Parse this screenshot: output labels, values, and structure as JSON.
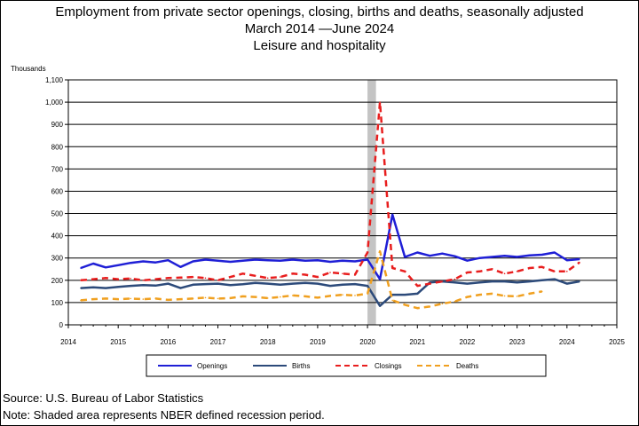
{
  "chart_data": {
    "type": "line",
    "title": "Employment from private sector openings, closing, births and deaths, seasonally adjusted",
    "subtitle": "March 2014 —June 2024",
    "subtitle2": "Leisure and hospitality",
    "ylabel": "Thousands",
    "xlabel": "",
    "ylim": [
      0,
      1100
    ],
    "yticks": [
      0,
      100,
      200,
      300,
      400,
      500,
      600,
      700,
      800,
      900,
      1000,
      1100
    ],
    "ytick_labels": [
      "0",
      "100",
      "200",
      "300",
      "400",
      "500",
      "600",
      "700",
      "800",
      "900",
      "1,000",
      "1,100"
    ],
    "xlim": [
      2014,
      2025
    ],
    "xticks": [
      2014,
      2015,
      2016,
      2017,
      2018,
      2019,
      2020,
      2021,
      2022,
      2023,
      2024,
      2025
    ],
    "xtick_labels": [
      "2014",
      "2015",
      "2016",
      "2017",
      "2018",
      "2019",
      "2020",
      "2021",
      "2022",
      "2023",
      "2024",
      "2025"
    ],
    "grid": "horizontal",
    "legend_position": "bottom",
    "recession_band": {
      "start": 2020.0,
      "end": 2020.17
    },
    "series": [
      {
        "name": "Openings",
        "color": "#1f1fd6",
        "dash": "solid",
        "x": [
          2014.25,
          2014.5,
          2014.75,
          2015.0,
          2015.25,
          2015.5,
          2015.75,
          2016.0,
          2016.25,
          2016.5,
          2016.75,
          2017.0,
          2017.25,
          2017.5,
          2017.75,
          2018.0,
          2018.25,
          2018.5,
          2018.75,
          2019.0,
          2019.25,
          2019.5,
          2019.75,
          2020.0,
          2020.25,
          2020.5,
          2020.75,
          2021.0,
          2021.25,
          2021.5,
          2021.75,
          2022.0,
          2022.25,
          2022.5,
          2022.75,
          2023.0,
          2023.25,
          2023.5,
          2023.75,
          2024.0,
          2024.25
        ],
        "values": [
          255,
          275,
          258,
          268,
          278,
          285,
          280,
          290,
          260,
          285,
          293,
          288,
          283,
          288,
          293,
          290,
          288,
          293,
          288,
          290,
          283,
          288,
          285,
          293,
          205,
          495,
          305,
          325,
          310,
          320,
          308,
          288,
          300,
          305,
          310,
          305,
          312,
          315,
          325,
          290,
          295
        ]
      },
      {
        "name": "Births",
        "color": "#2c4a7a",
        "dash": "solid",
        "x": [
          2014.25,
          2014.5,
          2014.75,
          2015.0,
          2015.25,
          2015.5,
          2015.75,
          2016.0,
          2016.25,
          2016.5,
          2016.75,
          2017.0,
          2017.25,
          2017.5,
          2017.75,
          2018.0,
          2018.25,
          2018.5,
          2018.75,
          2019.0,
          2019.25,
          2019.5,
          2019.75,
          2020.0,
          2020.25,
          2020.5,
          2020.75,
          2021.0,
          2021.25,
          2021.5,
          2021.75,
          2022.0,
          2022.25,
          2022.5,
          2022.75,
          2023.0,
          2023.25,
          2023.5,
          2023.75,
          2024.0,
          2024.25
        ],
        "values": [
          165,
          168,
          165,
          170,
          175,
          178,
          176,
          185,
          165,
          180,
          183,
          185,
          178,
          182,
          188,
          185,
          180,
          185,
          188,
          185,
          175,
          180,
          183,
          175,
          85,
          135,
          135,
          140,
          190,
          195,
          190,
          185,
          190,
          195,
          195,
          190,
          195,
          200,
          205,
          185,
          195
        ]
      },
      {
        "name": "Closings",
        "color": "#e81e1e",
        "dash": "dashed",
        "x": [
          2014.25,
          2014.5,
          2014.75,
          2015.0,
          2015.25,
          2015.5,
          2015.75,
          2016.0,
          2016.25,
          2016.5,
          2016.75,
          2017.0,
          2017.25,
          2017.5,
          2017.75,
          2018.0,
          2018.25,
          2018.5,
          2018.75,
          2019.0,
          2019.25,
          2019.5,
          2019.75,
          2020.0,
          2020.25,
          2020.5,
          2020.75,
          2021.0,
          2021.25,
          2021.5,
          2021.75,
          2022.0,
          2022.25,
          2022.5,
          2022.75,
          2023.0,
          2023.25,
          2023.5,
          2023.75,
          2024.0,
          2024.25
        ],
        "values": [
          200,
          205,
          210,
          205,
          208,
          200,
          205,
          210,
          212,
          215,
          210,
          200,
          215,
          230,
          220,
          210,
          215,
          230,
          225,
          215,
          235,
          230,
          225,
          325,
          1000,
          255,
          240,
          175,
          185,
          195,
          205,
          235,
          240,
          250,
          230,
          240,
          255,
          260,
          240,
          240,
          280
        ]
      },
      {
        "name": "Deaths",
        "color": "#f0a020",
        "dash": "dashed",
        "x": [
          2014.25,
          2014.5,
          2014.75,
          2015.0,
          2015.25,
          2015.5,
          2015.75,
          2016.0,
          2016.25,
          2016.5,
          2016.75,
          2017.0,
          2017.25,
          2017.5,
          2017.75,
          2018.0,
          2018.25,
          2018.5,
          2018.75,
          2019.0,
          2019.25,
          2019.5,
          2019.75,
          2020.0,
          2020.25,
          2020.5,
          2020.75,
          2021.0,
          2021.25,
          2021.5,
          2021.75,
          2022.0,
          2022.25,
          2022.5,
          2022.75,
          2023.0,
          2023.25,
          2023.5
        ],
        "values": [
          110,
          115,
          118,
          115,
          118,
          115,
          118,
          112,
          115,
          118,
          122,
          118,
          120,
          128,
          125,
          120,
          125,
          132,
          128,
          122,
          130,
          135,
          132,
          140,
          330,
          110,
          90,
          75,
          82,
          95,
          105,
          125,
          135,
          140,
          130,
          128,
          140,
          150
        ]
      }
    ]
  },
  "footer": {
    "source": "Source: U.S. Bureau of Labor Statistics",
    "note": "Note: Shaded area represents NBER defined recession period."
  }
}
